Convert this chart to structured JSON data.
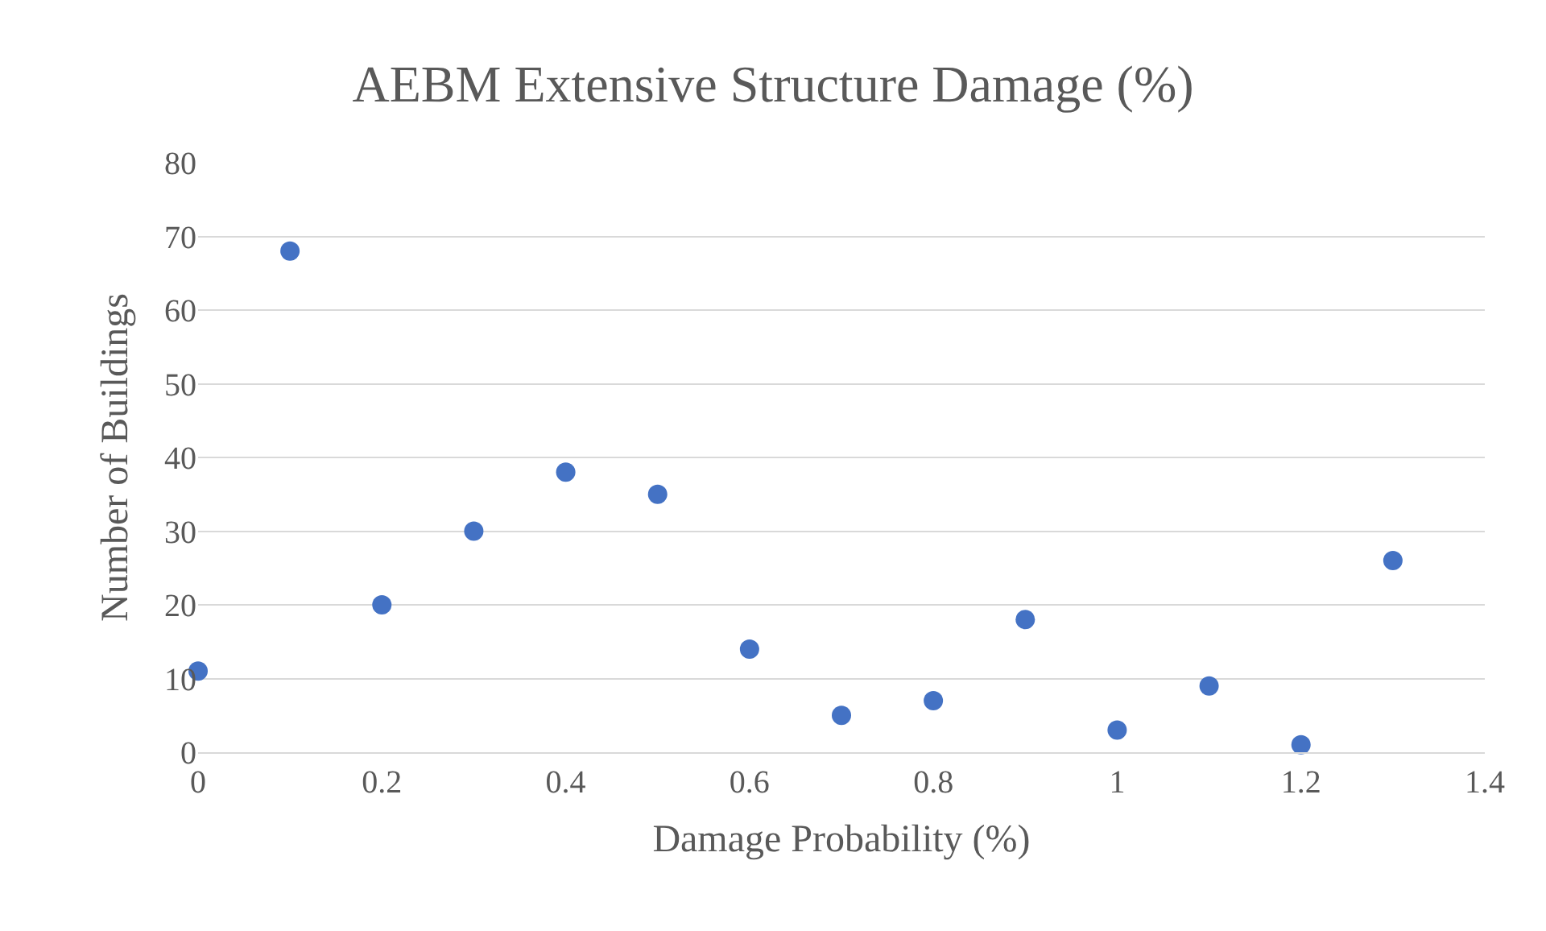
{
  "chart_data": {
    "type": "scatter",
    "title": "AEBM Extensive Structure Damage (%)",
    "xlabel": "Damage Probability (%)",
    "ylabel": "Number of Buildings",
    "x": [
      0,
      0.1,
      0.2,
      0.3,
      0.4,
      0.5,
      0.6,
      0.7,
      0.8,
      0.9,
      1,
      1.1,
      1.2,
      1.3
    ],
    "series": [
      {
        "color": "#4472c4",
        "values": [
          11,
          68,
          20,
          30,
          38,
          35,
          14,
          5,
          7,
          18,
          3,
          9,
          1,
          26
        ]
      }
    ],
    "xlim": [
      0,
      1.4
    ],
    "xticks": [
      0,
      0.2,
      0.4,
      0.6,
      0.8,
      1,
      1.2,
      1.4
    ],
    "ylim": [
      0,
      80
    ],
    "yticks": [
      0,
      10,
      20,
      30,
      40,
      50,
      60,
      70,
      80
    ],
    "grid": "y",
    "legend": false,
    "marker": "circle"
  }
}
